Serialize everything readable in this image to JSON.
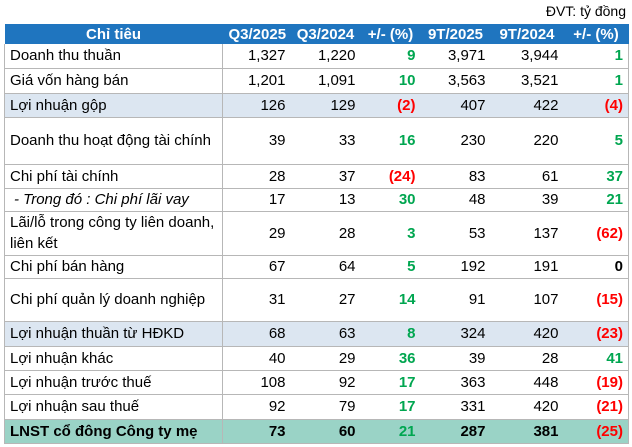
{
  "unit_note": "ĐVT: tỷ đồng",
  "table": {
    "header": [
      "Chỉ tiêu",
      "Q3/2025",
      "Q3/2024",
      "+/- (%)",
      "9T/2025",
      "9T/2024",
      "+/- (%)"
    ],
    "header_color": "#1f75bf",
    "rows": [
      {
        "label": "Doanh thu thuần",
        "cells": [
          "1,327",
          "1,220",
          "9",
          "3,971",
          "3,944",
          "1"
        ]
      },
      {
        "label": "Giá vốn hàng bán",
        "cells": [
          "1,201",
          "1,091",
          "10",
          "3,563",
          "3,521",
          "1"
        ]
      },
      {
        "label": "Lợi nhuận gộp",
        "cells": [
          "126",
          "129",
          "(2)",
          "407",
          "422",
          "(4)"
        ],
        "highlight": "#dce6f1"
      },
      {
        "label": "Doanh thu hoạt động tài chính",
        "cells": [
          "39",
          "33",
          "16",
          "230",
          "220",
          "5"
        ]
      },
      {
        "label": "Chi phí tài chính",
        "cells": [
          "28",
          "37",
          "(24)",
          "83",
          "61",
          "37"
        ]
      },
      {
        "label": "- Trong đó : Chi phí lãi vay",
        "cells": [
          "17",
          "13",
          "30",
          "48",
          "39",
          "21"
        ],
        "italic": true
      },
      {
        "label": "Lãi/lỗ trong công ty liên doanh, liên kết",
        "cells": [
          "29",
          "28",
          "3",
          "53",
          "137",
          "(62)"
        ]
      },
      {
        "label": "Chi phí bán hàng",
        "cells": [
          "67",
          "64",
          "5",
          "192",
          "191",
          "0"
        ]
      },
      {
        "label": "Chi phí quản lý doanh nghiệp",
        "cells": [
          "31",
          "27",
          "14",
          "91",
          "107",
          "(15)"
        ]
      },
      {
        "label": "Lợi nhuận thuần từ HĐKD",
        "cells": [
          "68",
          "63",
          "8",
          "324",
          "420",
          "(23)"
        ],
        "highlight": "#dce6f1"
      },
      {
        "label": "Lợi nhuận khác",
        "cells": [
          "40",
          "29",
          "36",
          "39",
          "28",
          "41"
        ]
      },
      {
        "label": "Lợi nhuận trước thuế",
        "cells": [
          "108",
          "92",
          "17",
          "363",
          "448",
          "(19)"
        ]
      },
      {
        "label": "Lợi nhuận sau thuế",
        "cells": [
          "92",
          "79",
          "17",
          "331",
          "420",
          "(21)"
        ]
      },
      {
        "label": "LNST cổ đông Công ty mẹ",
        "cells": [
          "73",
          "60",
          "21",
          "287",
          "381",
          "(25)"
        ],
        "highlight": "#9ad3c6",
        "bold": true
      }
    ]
  }
}
